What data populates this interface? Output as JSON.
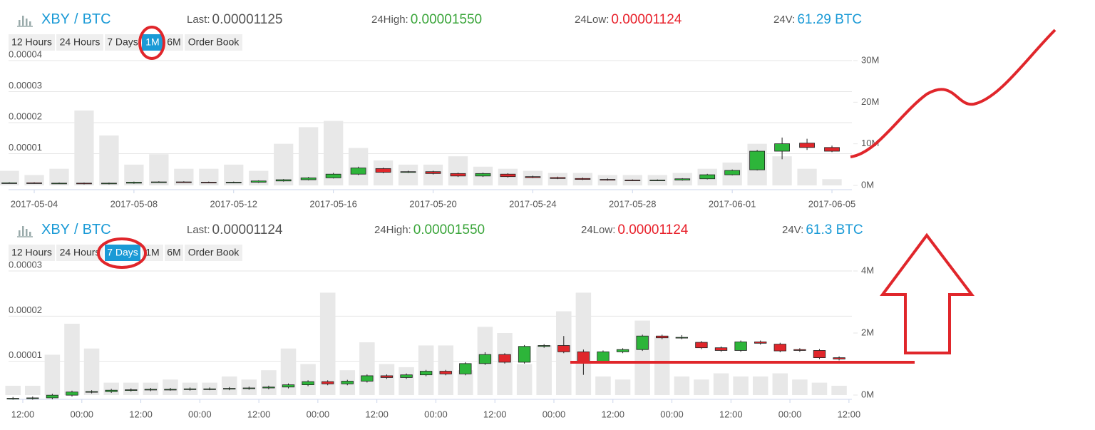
{
  "chart_data": [
    {
      "type": "candlestick",
      "header": {
        "base": "XBY",
        "sep": "/",
        "quote": "BTC",
        "last_label": "Last:",
        "last": "0.00001125",
        "high_label": "24High:",
        "high": "0.00001550",
        "low_label": "24Low:",
        "low": "0.00001124",
        "vol_label": "24V:",
        "vol": "61.29 BTC"
      },
      "buttons": [
        "12 Hours",
        "24 Hours",
        "7 Days",
        "1M",
        "6M",
        "Order Book"
      ],
      "active_button": 3,
      "x": [
        -1,
        0,
        1,
        2,
        3,
        4,
        5,
        6,
        7,
        8,
        9,
        10,
        11,
        12,
        13,
        14,
        15,
        16,
        17,
        18,
        19,
        20,
        21,
        22,
        23,
        24,
        25,
        26,
        27,
        28,
        29,
        30,
        31,
        32
      ],
      "open": [
        6e-07,
        6e-07,
        5e-07,
        5e-07,
        3e-07,
        5e-07,
        8e-07,
        9e-07,
        8e-07,
        7e-07,
        8e-07,
        1.2e-06,
        1.6e-06,
        2.2e-06,
        3.4e-06,
        5.2e-06,
        4e-06,
        4.2e-06,
        3.6e-06,
        2.8e-06,
        3.4e-06,
        2.6e-06,
        2.3e-06,
        2e-06,
        1.7e-06,
        1.5e-06,
        1.4e-06,
        1.5e-06,
        1.9e-06,
        3.2e-06,
        4.8e-06,
        1.08e-05,
        1.34e-05,
        1.2e-05
      ],
      "close": [
        6e-07,
        5e-07,
        5e-07,
        3e-07,
        5e-07,
        8e-07,
        9e-07,
        8e-07,
        7e-07,
        8e-07,
        1.2e-06,
        1.6e-06,
        2.2e-06,
        3.4e-06,
        5.4e-06,
        4e-06,
        4.2e-06,
        3.6e-06,
        2.8e-06,
        3.6e-06,
        2.6e-06,
        2.3e-06,
        2e-06,
        1.7e-06,
        1.5e-06,
        1.4e-06,
        1.5e-06,
        1.9e-06,
        3.2e-06,
        4.6e-06,
        1.08e-05,
        1.32e-05,
        1.2e-05,
        1.08e-05
      ],
      "high": [
        8e-07,
        8e-07,
        7e-07,
        7e-07,
        7e-07,
        1e-06,
        1.1e-06,
        1.1e-06,
        1e-06,
        1e-06,
        1.4e-06,
        1.8e-06,
        2.5e-06,
        3.8e-06,
        5.8e-06,
        5.5e-06,
        4.5e-06,
        4.5e-06,
        3.9e-06,
        3.9e-06,
        3.7e-06,
        2.9e-06,
        2.6e-06,
        2.3e-06,
        2e-06,
        1.7e-06,
        1.7e-06,
        2.1e-06,
        3.5e-06,
        4.9e-06,
        1.12e-05,
        1.52e-05,
        1.48e-05,
        1.26e-05
      ],
      "low": [
        4e-07,
        3e-07,
        3e-07,
        1e-07,
        1e-07,
        3e-07,
        6e-07,
        6e-07,
        5e-07,
        5e-07,
        6e-07,
        1e-06,
        1.4e-06,
        2e-06,
        3.1e-06,
        3.7e-06,
        3.8e-06,
        3.3e-06,
        2.5e-06,
        2.5e-06,
        2.3e-06,
        2.1e-06,
        1.8e-06,
        1.5e-06,
        1.3e-06,
        1.2e-06,
        1.2e-06,
        1.3e-06,
        1.7e-06,
        3e-06,
        4.6e-06,
        8.2e-06,
        1.12e-05,
        1.05e-05
      ],
      "volume": [
        3500000,
        2500000,
        4000000,
        18000000,
        12000000,
        5000000,
        7500000,
        4000000,
        4000000,
        5000000,
        3500000,
        10000000,
        14000000,
        15500000,
        9000000,
        6000000,
        5000000,
        5000000,
        7000000,
        4500000,
        4000000,
        3500000,
        3000000,
        3000000,
        2500000,
        2500000,
        2500000,
        3000000,
        4000000,
        5500000,
        10000000,
        7000000,
        4000000,
        1500000
      ],
      "xlim": [
        -1.03,
        32.8
      ],
      "xticks": [
        {
          "value": 0,
          "label": "2017-05-04"
        },
        {
          "value": 4,
          "label": "2017-05-08"
        },
        {
          "value": 8,
          "label": "2017-05-12"
        },
        {
          "value": 12,
          "label": "2017-05-16"
        },
        {
          "value": 16,
          "label": "2017-05-20"
        },
        {
          "value": 20,
          "label": "2017-05-24"
        },
        {
          "value": 24,
          "label": "2017-05-28"
        },
        {
          "value": 28,
          "label": "2017-06-01"
        },
        {
          "value": 32,
          "label": "2017-06-05"
        }
      ],
      "ylim": [
        0,
        4e-05
      ],
      "yticks": [
        {
          "value": 1e-05,
          "label": "0.00001"
        },
        {
          "value": 2e-05,
          "label": "0.00002"
        },
        {
          "value": 3e-05,
          "label": "0.00003"
        },
        {
          "value": 4e-05,
          "label": "0.00004"
        }
      ],
      "y2lim": [
        0,
        30000000
      ],
      "y2ticks": [
        {
          "value": 0,
          "label": "0M"
        },
        {
          "value": 10000000,
          "label": "10M"
        },
        {
          "value": 20000000,
          "label": "20M"
        },
        {
          "value": 30000000,
          "label": "30M"
        }
      ],
      "up_color": "#2db53a",
      "down_color": "#e0262b",
      "volume_color": "#e8e8e8",
      "grid": true
    },
    {
      "type": "candlestick",
      "header": {
        "base": "XBY",
        "sep": "/",
        "quote": "BTC",
        "last_label": "Last:",
        "last": "0.00001124",
        "high_label": "24High:",
        "high": "0.00001550",
        "low_label": "24Low:",
        "low": "0.00001124",
        "vol_label": "24V:",
        "vol": "61.3 BTC"
      },
      "buttons": [
        "12 Hours",
        "24 Hours",
        "7 Days",
        "1M",
        "6M",
        "Order Book"
      ],
      "active_button": 2,
      "x": [
        -2,
        2,
        6,
        10,
        14,
        18,
        22,
        26,
        30,
        34,
        38,
        42,
        46,
        50,
        54,
        58,
        62,
        66,
        70,
        74,
        78,
        82,
        86,
        90,
        94,
        98,
        102,
        106,
        110,
        114,
        118,
        122,
        126,
        130,
        134,
        138,
        142,
        146,
        150,
        154,
        158,
        162,
        166
      ],
      "open": [
        1.8e-06,
        1.8e-06,
        1.9e-06,
        2.5e-06,
        3.2e-06,
        3.3e-06,
        3.6e-06,
        3.7e-06,
        3.8e-06,
        3.8e-06,
        3.9e-06,
        3.9e-06,
        4e-06,
        4.1e-06,
        4.3e-06,
        4.8e-06,
        5.5e-06,
        5e-06,
        5.6e-06,
        6.8e-06,
        6.4e-06,
        7e-06,
        7.8e-06,
        7.2e-06,
        9.5e-06,
        1.15e-05,
        9.8e-06,
        1.33e-05,
        1.35e-05,
        1.21e-05,
        1e-05,
        1.21e-05,
        1.26e-05,
        1.56e-05,
        1.52e-05,
        1.42e-05,
        1.3e-05,
        1.24e-05,
        1.43e-05,
        1.38e-05,
        1.26e-05,
        1.24e-05,
        1.08e-05
      ],
      "close": [
        1.8e-06,
        1.9e-06,
        2.5e-06,
        3.2e-06,
        3.3e-06,
        3.6e-06,
        3.7e-06,
        3.8e-06,
        3.8e-06,
        3.9e-06,
        3.9e-06,
        4e-06,
        4.1e-06,
        4.3e-06,
        4.8e-06,
        5.5e-06,
        5e-06,
        5.6e-06,
        6.8e-06,
        6.4e-06,
        7e-06,
        7.8e-06,
        7.2e-06,
        9.5e-06,
        1.15e-05,
        9.8e-06,
        1.33e-05,
        1.35e-05,
        1.21e-05,
        1e-05,
        1.21e-05,
        1.26e-05,
        1.56e-05,
        1.52e-05,
        1.53e-05,
        1.3e-05,
        1.24e-05,
        1.43e-05,
        1.4e-05,
        1.23e-05,
        1.24e-05,
        1.08e-05,
        1.05e-05
      ],
      "high": [
        2.1e-06,
        2.2e-06,
        2.8e-06,
        3.5e-06,
        3.6e-06,
        3.9e-06,
        4e-06,
        4.1e-06,
        4.1e-06,
        4.2e-06,
        4.2e-06,
        4.3e-06,
        4.4e-06,
        4.6e-06,
        5.1e-06,
        5.8e-06,
        5.8e-06,
        5.9e-06,
        7.1e-06,
        7.1e-06,
        7.3e-06,
        8.1e-06,
        8.1e-06,
        9.8e-06,
        1.2e-05,
        1.18e-05,
        1.36e-05,
        1.38e-05,
        1.56e-05,
        1.26e-05,
        1.24e-05,
        1.29e-05,
        1.59e-05,
        1.59e-05,
        1.58e-05,
        1.45e-05,
        1.33e-05,
        1.46e-05,
        1.46e-05,
        1.41e-05,
        1.29e-05,
        1.27e-05,
        1.11e-05
      ],
      "low": [
        1.5e-06,
        1.5e-06,
        1.6e-06,
        2.2e-06,
        2.9e-06,
        3e-06,
        3.3e-06,
        3.4e-06,
        3.5e-06,
        3.5e-06,
        3.6e-06,
        3.6e-06,
        3.7e-06,
        3.8e-06,
        4e-06,
        4.5e-06,
        4.7e-06,
        4.7e-06,
        5.3e-06,
        6.1e-06,
        6.1e-06,
        6.7e-06,
        6.9e-06,
        6.9e-06,
        9.2e-06,
        9.5e-06,
        9.5e-06,
        1.3e-05,
        1.18e-05,
        7e-06,
        9.7e-06,
        1.18e-05,
        1.23e-05,
        1.49e-05,
        1.49e-05,
        1.27e-05,
        1.21e-05,
        1.21e-05,
        1.37e-05,
        1.2e-05,
        1.21e-05,
        1.05e-05,
        1.02e-05
      ],
      "volume": [
        300000,
        300000,
        1300000,
        2300000,
        1500000,
        400000,
        400000,
        400000,
        500000,
        400000,
        400000,
        600000,
        500000,
        800000,
        1500000,
        1000000,
        3300000,
        800000,
        1700000,
        1000000,
        900000,
        1600000,
        1600000,
        800000,
        2200000,
        2000000,
        1000000,
        1600000,
        2700000,
        3300000,
        600000,
        500000,
        2400000,
        1900000,
        600000,
        500000,
        700000,
        600000,
        600000,
        700000,
        500000,
        400000,
        300000
      ],
      "xlim": [
        -2.9,
        168.6
      ],
      "xticks": [
        {
          "value": 0,
          "label": "12:00"
        },
        {
          "value": 12,
          "label": "00:00"
        },
        {
          "value": 24,
          "label": "12:00"
        },
        {
          "value": 36,
          "label": "00:00"
        },
        {
          "value": 48,
          "label": "12:00"
        },
        {
          "value": 60,
          "label": "00:00"
        },
        {
          "value": 72,
          "label": "12:00"
        },
        {
          "value": 84,
          "label": "00:00"
        },
        {
          "value": 96,
          "label": "12:00"
        },
        {
          "value": 108,
          "label": "00:00"
        },
        {
          "value": 120,
          "label": "12:00"
        },
        {
          "value": 132,
          "label": "00:00"
        },
        {
          "value": 144,
          "label": "12:00"
        },
        {
          "value": 156,
          "label": "00:00"
        },
        {
          "value": 168,
          "label": "12:00"
        }
      ],
      "ylim": [
        0,
        3e-05
      ],
      "yticks": [
        {
          "value": 1e-05,
          "label": "0.00001"
        },
        {
          "value": 2e-05,
          "label": "0.00002"
        },
        {
          "value": 3e-05,
          "label": "0.00003"
        }
      ],
      "y2lim": [
        0,
        4000000
      ],
      "y2ticks": [
        {
          "value": 0,
          "label": "0M"
        },
        {
          "value": 2000000,
          "label": "2M"
        },
        {
          "value": 4000000,
          "label": "4M"
        }
      ],
      "up_color": "#2db53a",
      "down_color": "#e0262b",
      "volume_color": "#e8e8e8",
      "grid": true
    }
  ]
}
